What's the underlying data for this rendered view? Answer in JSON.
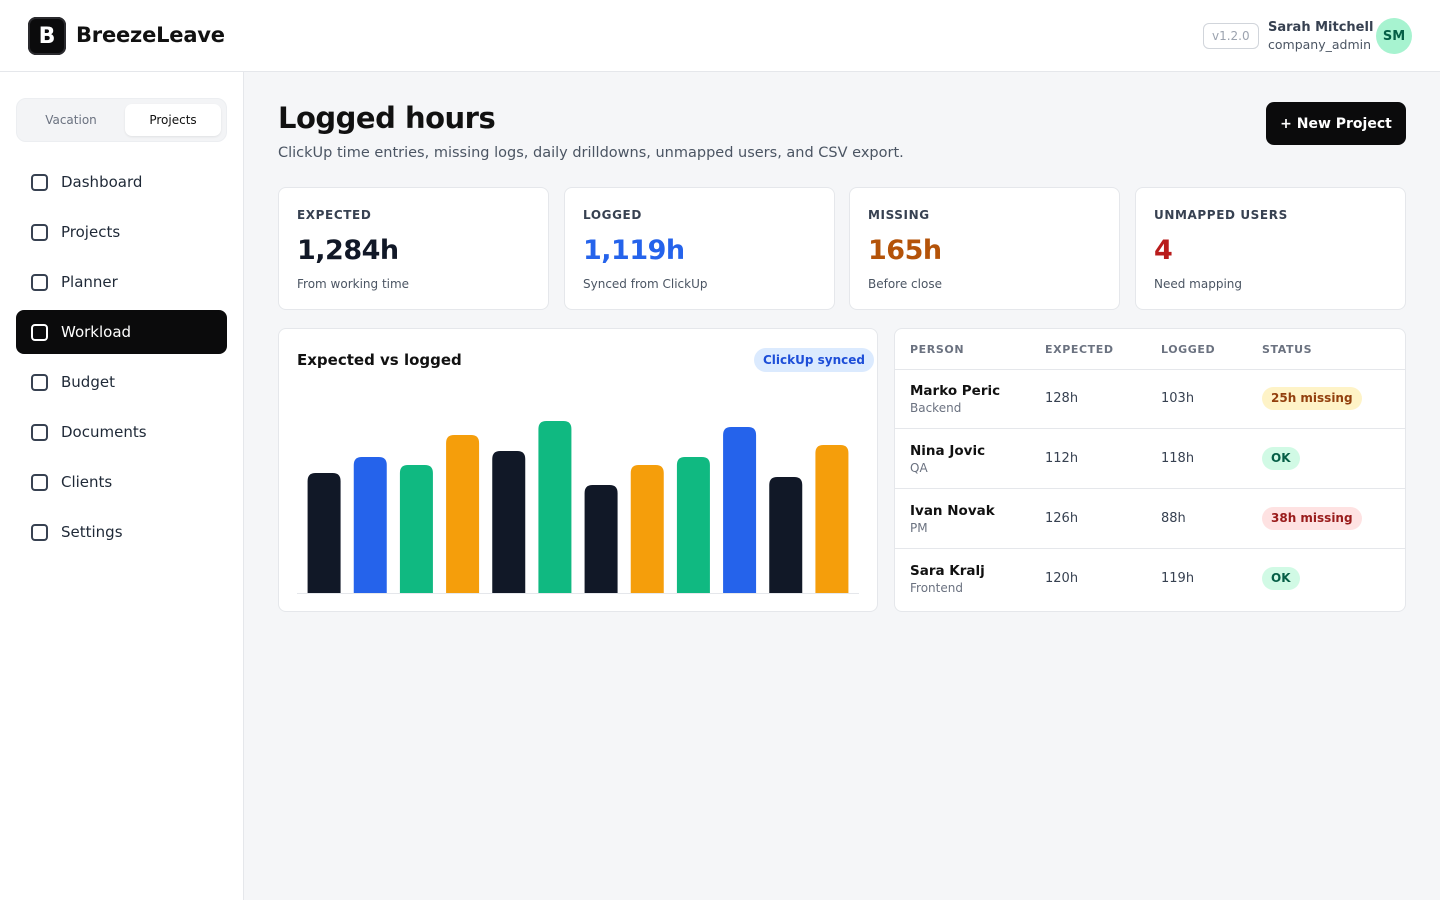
{
  "app": {
    "logo_letter": "B",
    "name": "BreezeLeave",
    "version": "v1.2.0"
  },
  "user": {
    "name": "Sarah Mitchell",
    "role": "company_admin",
    "initials": "SM"
  },
  "segment": {
    "vacation": "Vacation",
    "projects": "Projects",
    "selected": "Projects"
  },
  "nav": {
    "items": [
      {
        "label": "Dashboard"
      },
      {
        "label": "Projects"
      },
      {
        "label": "Planner"
      },
      {
        "label": "Workload"
      },
      {
        "label": "Budget"
      },
      {
        "label": "Documents"
      },
      {
        "label": "Clients"
      },
      {
        "label": "Settings"
      }
    ],
    "active": "Workload"
  },
  "page": {
    "title": "Logged hours",
    "subtitle": "ClickUp time entries, missing logs, daily drilldowns, unmapped users, and CSV export.",
    "new_button": "+ New Project"
  },
  "stats": [
    {
      "key": "EXPECTED",
      "value": "1,284h",
      "sub": "From working time",
      "color": "#111827"
    },
    {
      "key": "LOGGED",
      "value": "1,119h",
      "sub": "Synced from ClickUp",
      "color": "#2563eb"
    },
    {
      "key": "MISSING",
      "value": "165h",
      "sub": "Before close",
      "color": "#b45309"
    },
    {
      "key": "UNMAPPED USERS",
      "value": "4",
      "sub": "Need mapping",
      "color": "#b91c1c"
    }
  ],
  "chart": {
    "title": "Expected vs logged",
    "badge": "ClickUp synced"
  },
  "chart_data": {
    "type": "bar",
    "title": "Expected vs logged",
    "values": [
      60,
      68,
      64,
      79,
      71,
      86,
      54,
      64,
      68,
      83,
      58,
      74
    ],
    "colors": [
      "#111827",
      "#2563eb",
      "#10b981",
      "#f59e0b",
      "#111827",
      "#10b981",
      "#111827",
      "#f59e0b",
      "#10b981",
      "#2563eb",
      "#111827",
      "#f59e0b"
    ],
    "ylim": [
      0,
      100
    ],
    "grid": false
  },
  "table": {
    "headers": {
      "person": "PERSON",
      "expected": "EXPECTED",
      "logged": "LOGGED",
      "status": "STATUS"
    },
    "rows": [
      {
        "name": "Marko Peric",
        "role": "Backend",
        "expected": "128h",
        "logged": "103h",
        "status": "25h missing",
        "tone": "amber"
      },
      {
        "name": "Nina Jovic",
        "role": "QA",
        "expected": "112h",
        "logged": "118h",
        "status": "OK",
        "tone": "green"
      },
      {
        "name": "Ivan Novak",
        "role": "PM",
        "expected": "126h",
        "logged": "88h",
        "status": "38h missing",
        "tone": "red"
      },
      {
        "name": "Sara Kralj",
        "role": "Frontend",
        "expected": "120h",
        "logged": "119h",
        "status": "OK",
        "tone": "green"
      }
    ]
  }
}
